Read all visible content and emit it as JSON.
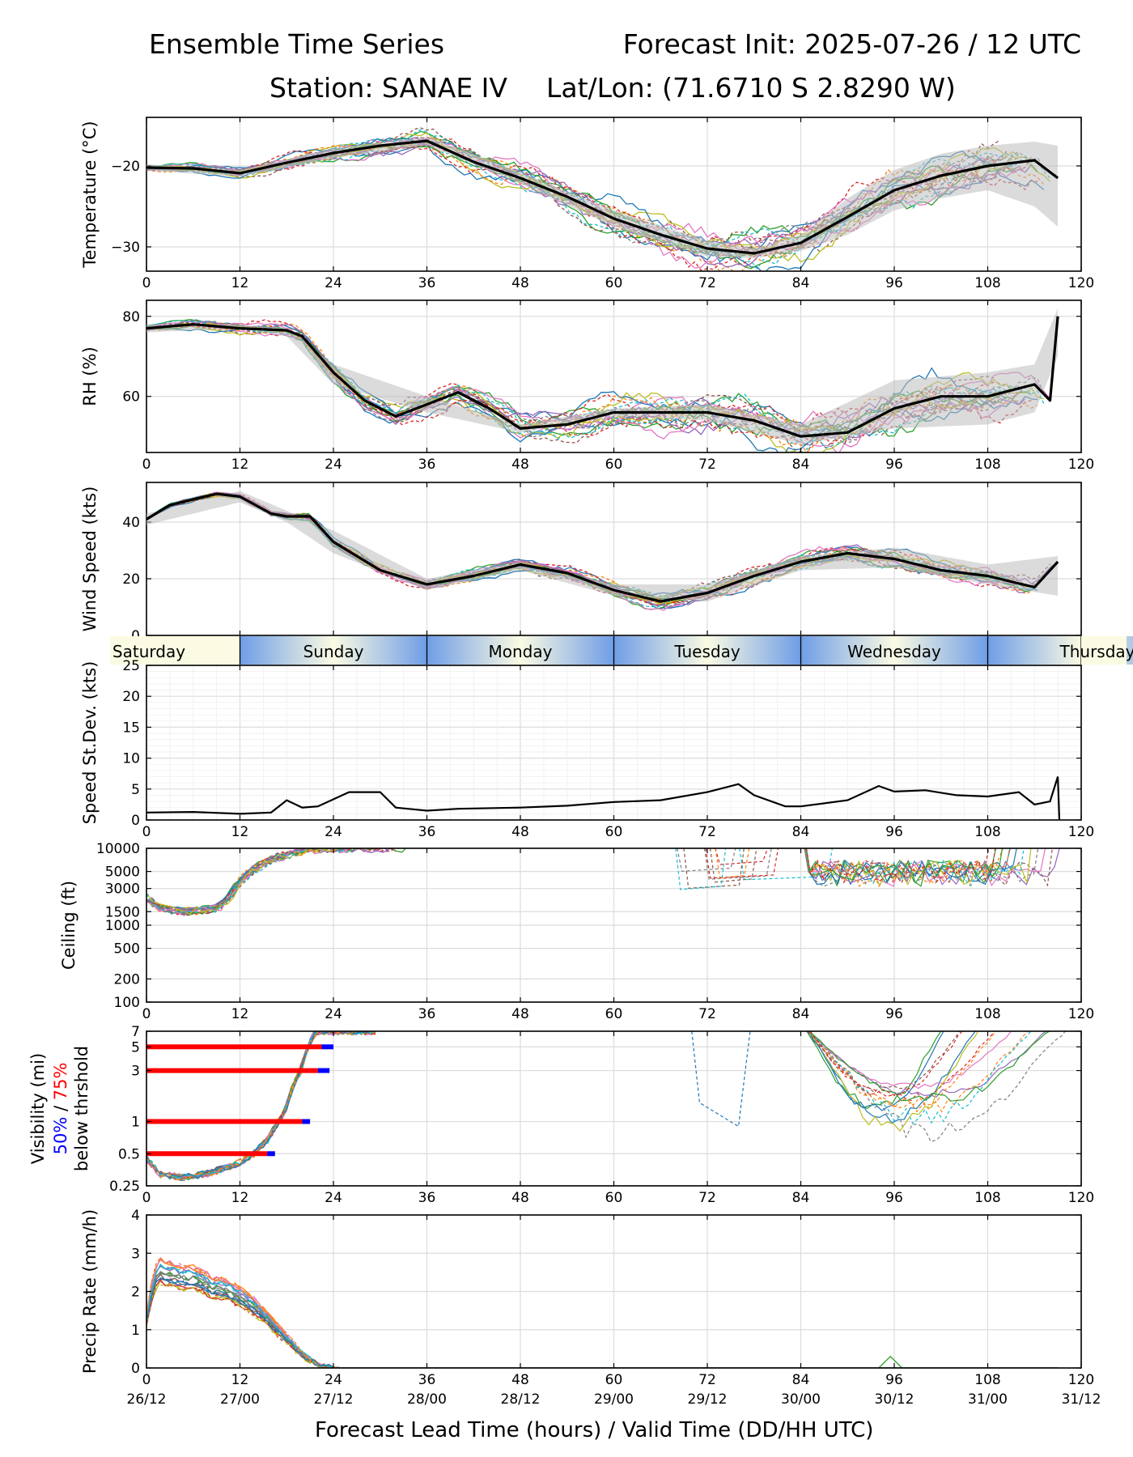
{
  "header": {
    "title_left": "Ensemble Time Series",
    "title_right": "Forecast Init: 2025-07-26 / 12 UTC",
    "station": "Station: SANAE IV",
    "latlon": "Lat/Lon: (71.6710 S 2.8290 W)"
  },
  "footer": {
    "xlabel": "Forecast Lead Time (hours) / Valid Time (DD/HH UTC)"
  },
  "days": [
    "Saturday",
    "Sunday",
    "Monday",
    "Tuesday",
    "Wednesday",
    "Thursday"
  ],
  "x_ticks": [
    0,
    12,
    24,
    36,
    48,
    60,
    72,
    84,
    96,
    108,
    120
  ],
  "valid_time_labels": [
    "26/12",
    "27/00",
    "27/12",
    "28/00",
    "28/12",
    "29/00",
    "29/12",
    "30/00",
    "30/12",
    "31/00",
    "31/12"
  ],
  "colors": {
    "mean": "#000000",
    "spread": "#bdbdbd",
    "vis50": "#0000ff",
    "vis75": "#ff0000",
    "members": [
      "#1f77b4",
      "#ff7f0e",
      "#2ca02c",
      "#d62728",
      "#9467bd",
      "#8c564b",
      "#e377c2",
      "#7f7f7f",
      "#bcbd22",
      "#17becf"
    ]
  },
  "chart_data": [
    {
      "id": "temperature",
      "type": "line",
      "ylabel": "Temperature (°C)",
      "xlim": [
        0,
        120
      ],
      "ylim": [
        -33,
        -14
      ],
      "yticks": [
        -20,
        -30
      ],
      "mean": {
        "x": [
          0,
          6,
          12,
          18,
          24,
          30,
          36,
          42,
          48,
          54,
          60,
          66,
          72,
          78,
          84,
          90,
          96,
          102,
          108,
          114,
          117
        ],
        "y": [
          -20.2,
          -20.3,
          -20.9,
          -19.6,
          -18.4,
          -17.5,
          -16.9,
          -19.5,
          -21.5,
          -23.8,
          -26.5,
          -28.5,
          -30.2,
          -30.8,
          -29.5,
          -26.3,
          -23.0,
          -21.2,
          -20.0,
          -19.3,
          -21.5
        ]
      },
      "spread": {
        "x": [
          0,
          12,
          24,
          36,
          48,
          60,
          72,
          78,
          84,
          90,
          96,
          102,
          108,
          114,
          117
        ],
        "upper": [
          -19.8,
          -20.5,
          -17.8,
          -16.4,
          -20.8,
          -25.5,
          -29.2,
          -30.2,
          -28.5,
          -24.0,
          -20.5,
          -18.5,
          -17.5,
          -17.0,
          -17.5
        ],
        "lower": [
          -20.6,
          -21.3,
          -19.0,
          -17.4,
          -22.2,
          -27.5,
          -31.2,
          -31.4,
          -30.5,
          -28.5,
          -25.5,
          -24.0,
          -23.0,
          -25.0,
          -27.5
        ]
      }
    },
    {
      "id": "rh",
      "type": "line",
      "ylabel": "RH (%)",
      "xlim": [
        0,
        120
      ],
      "ylim": [
        46,
        84
      ],
      "yticks": [
        80,
        60
      ],
      "mean": {
        "x": [
          0,
          6,
          12,
          18,
          20,
          24,
          28,
          32,
          36,
          40,
          44,
          48,
          54,
          60,
          66,
          72,
          78,
          84,
          90,
          96,
          102,
          108,
          114,
          116,
          117
        ],
        "y": [
          77,
          78,
          77,
          76.5,
          75,
          66,
          59,
          55,
          58,
          61,
          57,
          52,
          53,
          56,
          56,
          56,
          54,
          50,
          51,
          57,
          60,
          60,
          63,
          59,
          80
        ]
      },
      "spread": {
        "x": [
          0,
          12,
          18,
          24,
          36,
          48,
          60,
          72,
          84,
          96,
          108,
          114,
          117
        ],
        "upper": [
          78,
          78,
          77,
          68,
          60,
          53,
          57,
          58,
          53,
          64,
          66,
          68,
          82
        ],
        "lower": [
          76,
          77,
          75,
          63,
          56,
          51,
          55,
          54,
          48,
          52,
          53,
          56,
          70
        ]
      }
    },
    {
      "id": "wind_speed",
      "type": "line",
      "ylabel": "Wind Speed (kts)",
      "xlim": [
        0,
        120
      ],
      "ylim": [
        0,
        54
      ],
      "yticks": [
        40,
        20,
        0
      ],
      "mean": {
        "x": [
          0,
          3,
          6,
          9,
          12,
          16,
          18,
          21,
          24,
          30,
          36,
          42,
          48,
          54,
          60,
          66,
          72,
          78,
          84,
          90,
          96,
          102,
          108,
          114,
          117
        ],
        "y": [
          41,
          46,
          48,
          50,
          49,
          43,
          42,
          42,
          33,
          23,
          18,
          21,
          25,
          22,
          16,
          12,
          15,
          21,
          26,
          29,
          27,
          23,
          21,
          17,
          26
        ]
      },
      "spread": {
        "x": [
          0,
          12,
          18,
          24,
          36,
          48,
          60,
          72,
          84,
          96,
          108,
          117
        ],
        "upper": [
          43,
          51,
          44,
          37,
          20,
          26,
          18,
          18,
          28,
          31,
          25,
          28
        ],
        "lower": [
          39,
          47,
          40,
          29,
          16,
          23,
          14,
          12,
          23,
          24,
          18,
          14
        ]
      }
    },
    {
      "id": "speed_stdev",
      "type": "line",
      "ylabel": "Speed St.Dev. (kts)",
      "xlim": [
        0,
        120
      ],
      "ylim": [
        0,
        25
      ],
      "yticks": [
        25,
        20,
        15,
        10,
        5,
        0
      ],
      "mean": {
        "x": [
          0,
          6,
          12,
          16,
          18,
          20,
          22,
          26,
          30,
          32,
          36,
          40,
          48,
          54,
          60,
          66,
          72,
          76,
          78,
          82,
          84,
          90,
          94,
          96,
          100,
          104,
          108,
          112,
          114,
          116,
          117,
          117.2
        ],
        "y": [
          1.2,
          1.3,
          1.0,
          1.2,
          3.2,
          2.0,
          2.2,
          4.5,
          4.5,
          2.0,
          1.5,
          1.8,
          2.0,
          2.3,
          2.9,
          3.2,
          4.5,
          5.8,
          4.0,
          2.2,
          2.2,
          3.2,
          5.5,
          4.6,
          4.8,
          4.0,
          3.8,
          4.5,
          2.5,
          3.0,
          7.0,
          0
        ]
      }
    },
    {
      "id": "ceiling",
      "type": "line",
      "ylabel": "Ceiling (ft)",
      "log_scale": true,
      "xlim": [
        0,
        120
      ],
      "ylim": [
        100,
        10000
      ],
      "yticks": [
        10000,
        5000,
        3000,
        1500,
        1000,
        500,
        200,
        100
      ],
      "typical_member": {
        "x": [
          0,
          2,
          6,
          10,
          12,
          14,
          16,
          18,
          20,
          22,
          24,
          26
        ],
        "y": [
          2300,
          1700,
          1500,
          1600,
          1700,
          2500,
          4200,
          6000,
          7500,
          8500,
          9500,
          10000
        ]
      }
    },
    {
      "id": "visibility",
      "type": "line",
      "ylabel": "Visibility (mi)",
      "log_scale": true,
      "ylabel_50": "50%",
      "ylabel_sep": " / ",
      "ylabel_75": "75%",
      "ylabel_below": "below thrshold",
      "xlim": [
        0,
        120
      ],
      "ylim": [
        0.25,
        7
      ],
      "yticks": [
        7,
        5,
        3,
        1,
        0.5,
        0.25
      ],
      "thresholds": [
        {
          "level": 5,
          "x75": 22.5,
          "x50": 24
        },
        {
          "level": 3,
          "x75": 22,
          "x50": 23.5
        },
        {
          "level": 1,
          "x75": 20,
          "x50": 21
        },
        {
          "level": 0.5,
          "x75": 15.5,
          "x50": 16.5
        }
      ],
      "typical_member": {
        "x": [
          0,
          2,
          6,
          10,
          14,
          16,
          18,
          20,
          22,
          24
        ],
        "y": [
          0.45,
          0.32,
          0.3,
          0.33,
          0.4,
          0.5,
          0.7,
          1.2,
          3.0,
          7.0
        ]
      }
    },
    {
      "id": "precip_rate",
      "type": "line",
      "ylabel": "Precip Rate (mm/h)",
      "xlim": [
        0,
        120
      ],
      "ylim": [
        0,
        4
      ],
      "yticks": [
        4,
        3,
        2,
        1,
        0
      ],
      "typical_member": {
        "x": [
          0,
          1,
          2,
          4,
          6,
          8,
          10,
          12,
          14,
          16,
          18,
          20,
          22,
          24,
          27,
          36
        ],
        "y": [
          1.2,
          2.1,
          2.5,
          2.4,
          2.3,
          2.3,
          2.1,
          2.0,
          1.8,
          1.5,
          1.1,
          0.7,
          0.3,
          0.05,
          0,
          0
        ]
      }
    }
  ]
}
